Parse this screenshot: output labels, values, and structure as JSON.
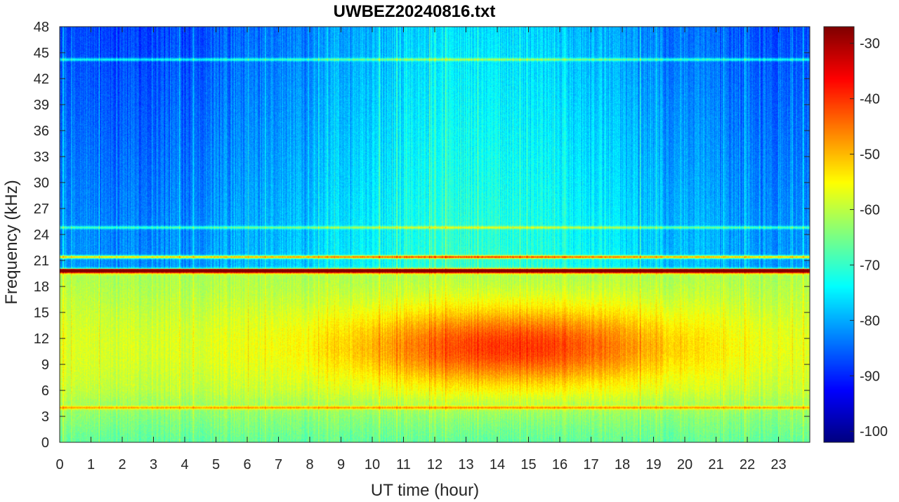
{
  "chart_data": {
    "type": "heatmap",
    "title": "UWBEZ20240816.txt",
    "xlabel": "UT time (hour)",
    "ylabel": "Frequency (kHz)",
    "xlim": [
      0,
      24
    ],
    "ylim": [
      0,
      48
    ],
    "x_ticks": [
      "0",
      "1",
      "2",
      "3",
      "4",
      "5",
      "6",
      "7",
      "8",
      "9",
      "10",
      "11",
      "12",
      "13",
      "14",
      "15",
      "16",
      "17",
      "18",
      "19",
      "20",
      "21",
      "22",
      "23"
    ],
    "y_ticks": [
      "0",
      "3",
      "6",
      "9",
      "12",
      "15",
      "18",
      "21",
      "24",
      "27",
      "30",
      "33",
      "36",
      "39",
      "42",
      "45",
      "48"
    ],
    "colorbar": {
      "clim": [
        -102,
        -27
      ],
      "ticks": [
        "-30",
        "-40",
        "-50",
        "-60",
        "-70",
        "-80",
        "-90",
        "-100"
      ],
      "colormap": "jet"
    },
    "narrowband_lines_khz": [
      19.8,
      21.4,
      24.8,
      44.2,
      4.0
    ],
    "hotspot": {
      "time_range_hours": [
        9,
        20
      ],
      "freq_range_khz": [
        6,
        16
      ],
      "peak_db": -48
    },
    "background_db": {
      "low_freq": -66,
      "high_freq_night": -88,
      "high_freq_day": -76
    }
  }
}
